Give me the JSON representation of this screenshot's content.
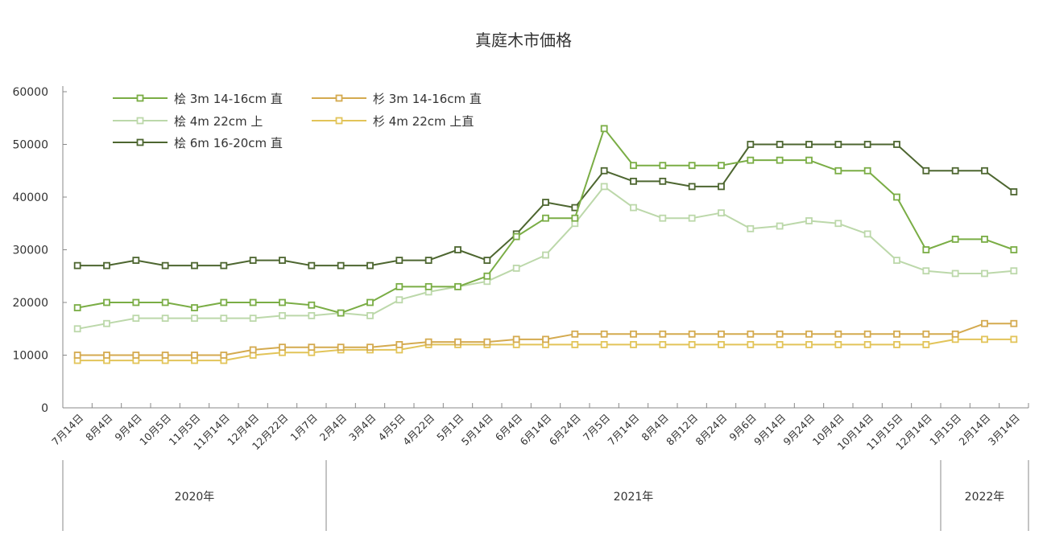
{
  "chart_data": {
    "type": "line",
    "title": "真庭木市価格",
    "xlabel": "",
    "ylabel": "",
    "ylim": [
      0,
      60000
    ],
    "yticks": [
      "0",
      "10000",
      "20000",
      "30000",
      "40000",
      "50000",
      "60000"
    ],
    "grid": false,
    "legend_position": "top-left",
    "categories": [
      "7月14日",
      "8月4日",
      "9月4日",
      "10月5日",
      "11月5日",
      "11月14日",
      "12月4日",
      "12月22日",
      "1月7日",
      "2月4日",
      "3月4日",
      "4月5日",
      "4月22日",
      "5月1日",
      "5月14日",
      "6月4日",
      "6月14日",
      "6月24日",
      "7月5日",
      "7月14日",
      "8月4日",
      "8月12日",
      "8月24日",
      "9月6日",
      "9月14日",
      "9月24日",
      "10月4日",
      "10月14日",
      "11月15日",
      "12月14日",
      "1月15日",
      "2月14日",
      "3月14日"
    ],
    "year_groups": [
      {
        "label": "2020年",
        "start": 0,
        "end": 8
      },
      {
        "label": "2021年",
        "start": 9,
        "end": 29
      },
      {
        "label": "2022年",
        "start": 30,
        "end": 32
      }
    ],
    "series": [
      {
        "name": "桧 3m 14-16cm 直",
        "color": "#7aad45",
        "values": [
          19000,
          20000,
          20000,
          20000,
          19000,
          20000,
          20000,
          20000,
          19500,
          18000,
          20000,
          23000,
          23000,
          23000,
          25000,
          32500,
          36000,
          36000,
          53000,
          46000,
          46000,
          46000,
          46000,
          47000,
          47000,
          47000,
          45000,
          45000,
          40000,
          30000,
          32000,
          32000,
          30000
        ]
      },
      {
        "name": "桧 4m 22cm 上",
        "color": "#bcd8aa",
        "values": [
          15000,
          16000,
          17000,
          17000,
          17000,
          17000,
          17000,
          17500,
          17500,
          18000,
          17500,
          20500,
          22000,
          23000,
          24000,
          26500,
          29000,
          35000,
          42000,
          38000,
          36000,
          36000,
          37000,
          34000,
          34500,
          35500,
          35000,
          33000,
          28000,
          26000,
          25500,
          25500,
          26000
        ]
      },
      {
        "name": "桧 6m 16-20cm 直",
        "color": "#4d6630",
        "values": [
          27000,
          27000,
          28000,
          27000,
          27000,
          27000,
          28000,
          28000,
          27000,
          27000,
          27000,
          28000,
          28000,
          30000,
          28000,
          33000,
          39000,
          38000,
          45000,
          43000,
          43000,
          42000,
          42000,
          50000,
          50000,
          50000,
          50000,
          50000,
          50000,
          45000,
          45000,
          45000,
          41000
        ]
      },
      {
        "name": "杉 3m 14-16cm 直",
        "color": "#d4aa4f",
        "values": [
          10000,
          10000,
          10000,
          10000,
          10000,
          10000,
          11000,
          11500,
          11500,
          11500,
          11500,
          12000,
          12500,
          12500,
          12500,
          13000,
          13000,
          14000,
          14000,
          14000,
          14000,
          14000,
          14000,
          14000,
          14000,
          14000,
          14000,
          14000,
          14000,
          14000,
          14000,
          16000,
          16000
        ]
      },
      {
        "name": "杉 4m 22cm 上直",
        "color": "#e2c459",
        "values": [
          9000,
          9000,
          9000,
          9000,
          9000,
          9000,
          10000,
          10500,
          10500,
          11000,
          11000,
          11000,
          12000,
          12000,
          12000,
          12000,
          12000,
          12000,
          12000,
          12000,
          12000,
          12000,
          12000,
          12000,
          12000,
          12000,
          12000,
          12000,
          12000,
          12000,
          13000,
          13000,
          13000
        ]
      }
    ]
  }
}
